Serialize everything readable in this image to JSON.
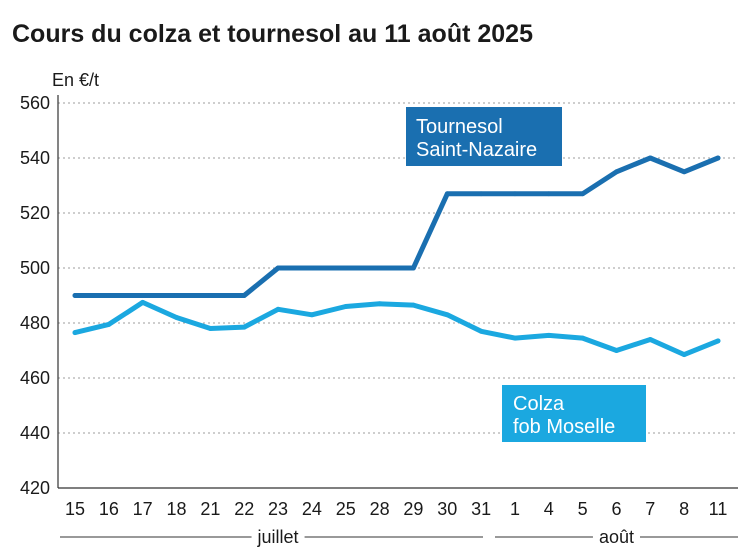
{
  "chart_data": {
    "type": "line",
    "title": "Cours du colza et tournesol au 11 août 2025",
    "ylabel": "En €/t",
    "xlabel": "",
    "ylim": [
      420,
      560
    ],
    "yticks": [
      420,
      440,
      460,
      480,
      500,
      520,
      540,
      560
    ],
    "grid": true,
    "categories": [
      "15",
      "16",
      "17",
      "18",
      "21",
      "22",
      "23",
      "24",
      "25",
      "28",
      "29",
      "30",
      "31",
      "1",
      "4",
      "5",
      "6",
      "7",
      "8",
      "11"
    ],
    "month_groups": [
      {
        "label": "juillet",
        "start_index": 0,
        "end_index": 12
      },
      {
        "label": "août",
        "start_index": 13,
        "end_index": 19
      }
    ],
    "series": [
      {
        "name": "Tournesol Saint-Nazaire",
        "legend_lines": [
          "Tournesol",
          "Saint-Nazaire"
        ],
        "color": "#1a6fb0",
        "legend_position": "top-right",
        "values": [
          490,
          490,
          490,
          490,
          490,
          490,
          500,
          500,
          500,
          500,
          500,
          527,
          527,
          527,
          527,
          527,
          535,
          540,
          535,
          540
        ]
      },
      {
        "name": "Colza fob Moselle",
        "legend_lines": [
          "Colza",
          "fob Moselle"
        ],
        "color": "#1ba8e0",
        "legend_position": "bottom-right",
        "values": [
          476.5,
          479.5,
          487.5,
          482,
          478,
          478.5,
          485,
          483,
          486,
          487,
          486.5,
          483,
          477,
          474.5,
          475.5,
          474.5,
          470,
          474,
          468.5,
          473.5
        ]
      }
    ]
  }
}
